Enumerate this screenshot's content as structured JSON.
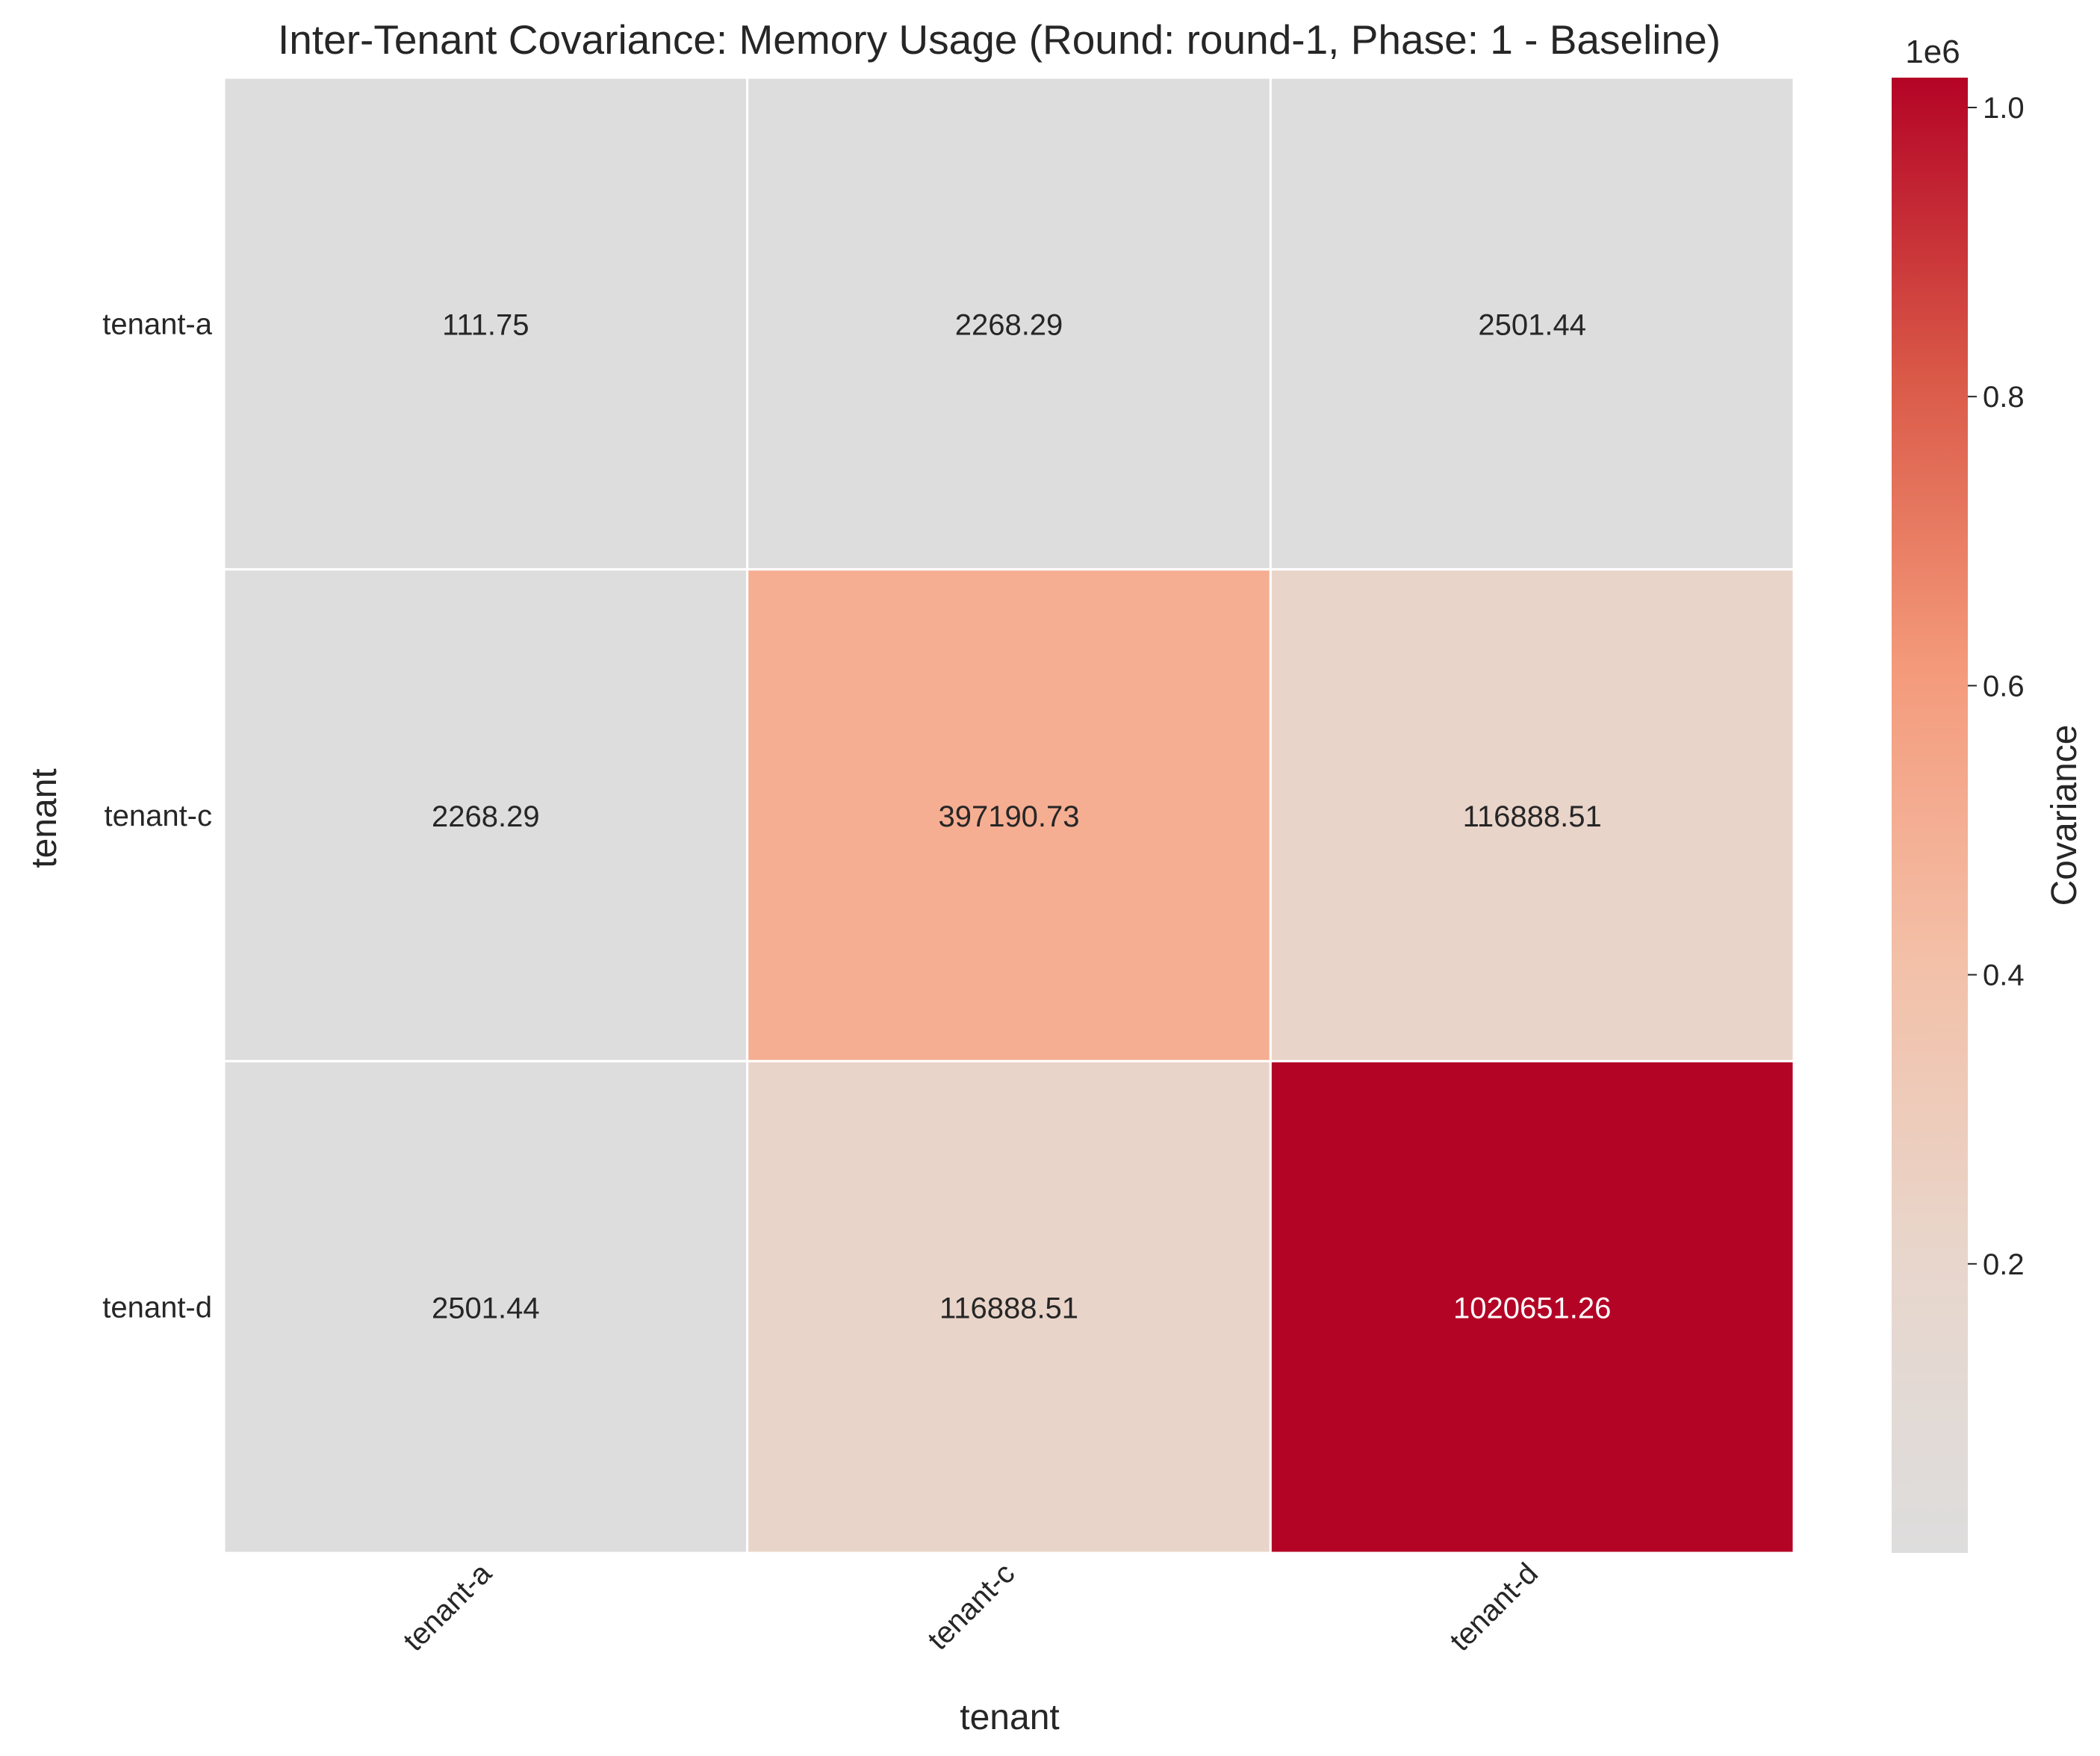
{
  "chart_data": {
    "type": "heatmap",
    "title": "Inter-Tenant Covariance: Memory Usage (Round: round-1, Phase: 1 - Baseline)",
    "xlabel": "tenant",
    "ylabel": "tenant",
    "x_categories": [
      "tenant-a",
      "tenant-c",
      "tenant-d"
    ],
    "y_categories": [
      "tenant-a",
      "tenant-c",
      "tenant-d"
    ],
    "values": [
      [
        111.75,
        2268.29,
        2501.44
      ],
      [
        2268.29,
        397190.73,
        116888.51
      ],
      [
        2501.44,
        116888.51,
        1020651.26
      ]
    ],
    "cell_labels": [
      [
        "111.75",
        "2268.29",
        "2501.44"
      ],
      [
        "2268.29",
        "397190.73",
        "116888.51"
      ],
      [
        "2501.44",
        "116888.51",
        "1020651.26"
      ]
    ],
    "colorbar": {
      "label": "Covariance",
      "offset_text": "1e6",
      "ticks": [
        0.2,
        0.4,
        0.6,
        0.8,
        1.0
      ],
      "tick_labels": [
        "0.2",
        "0.4",
        "0.6",
        "0.8",
        "1.0"
      ],
      "range": [
        -1020651.26,
        1020651.26
      ],
      "colormap": "coolwarm-center",
      "colors": {
        "center": "#dddddd",
        "stops": [
          "#dddddd",
          "#efcebd",
          "#f5a585",
          "#e57058",
          "#c52a32",
          "#b40426"
        ]
      }
    },
    "grid": false
  }
}
